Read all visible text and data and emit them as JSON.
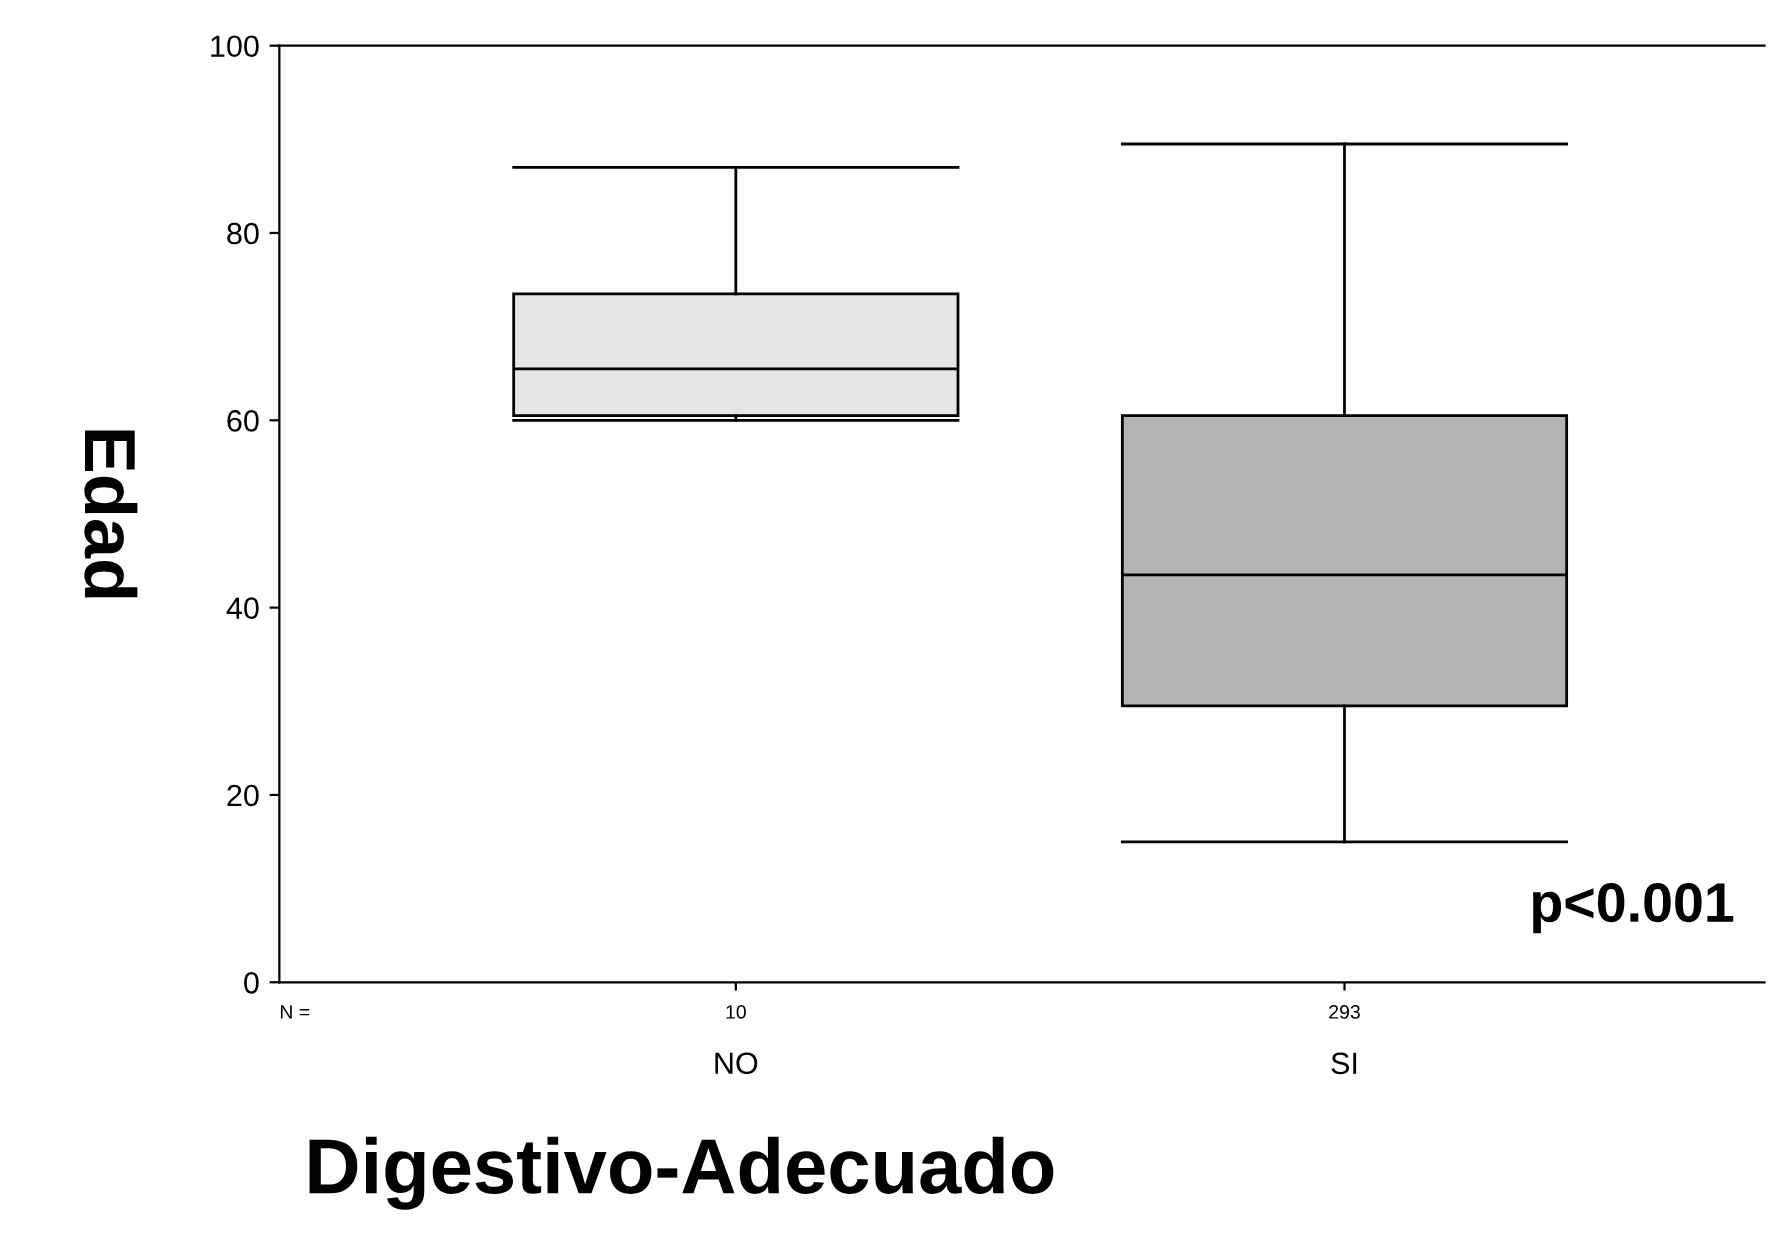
{
  "chart_data": {
    "type": "box",
    "categories": [
      "NO",
      "SI"
    ],
    "boxes": [
      {
        "low": 60,
        "q1": 60.5,
        "median": 65.5,
        "q3": 73.5,
        "high": 87
      },
      {
        "low": 15,
        "q1": 29.5,
        "median": 43.5,
        "q3": 60.5,
        "high": 89.5
      }
    ],
    "colors": [
      "#e6e6e6",
      "#b4b4b4"
    ],
    "ylim": [
      0,
      100
    ],
    "yticks": [
      0,
      20,
      40,
      60,
      80,
      100
    ],
    "grid": false,
    "xlabel": "Digestivo-Adecuado",
    "ylabel": "Edad",
    "annotations": [
      "N =",
      "10",
      "293",
      "p<0.001"
    ]
  }
}
